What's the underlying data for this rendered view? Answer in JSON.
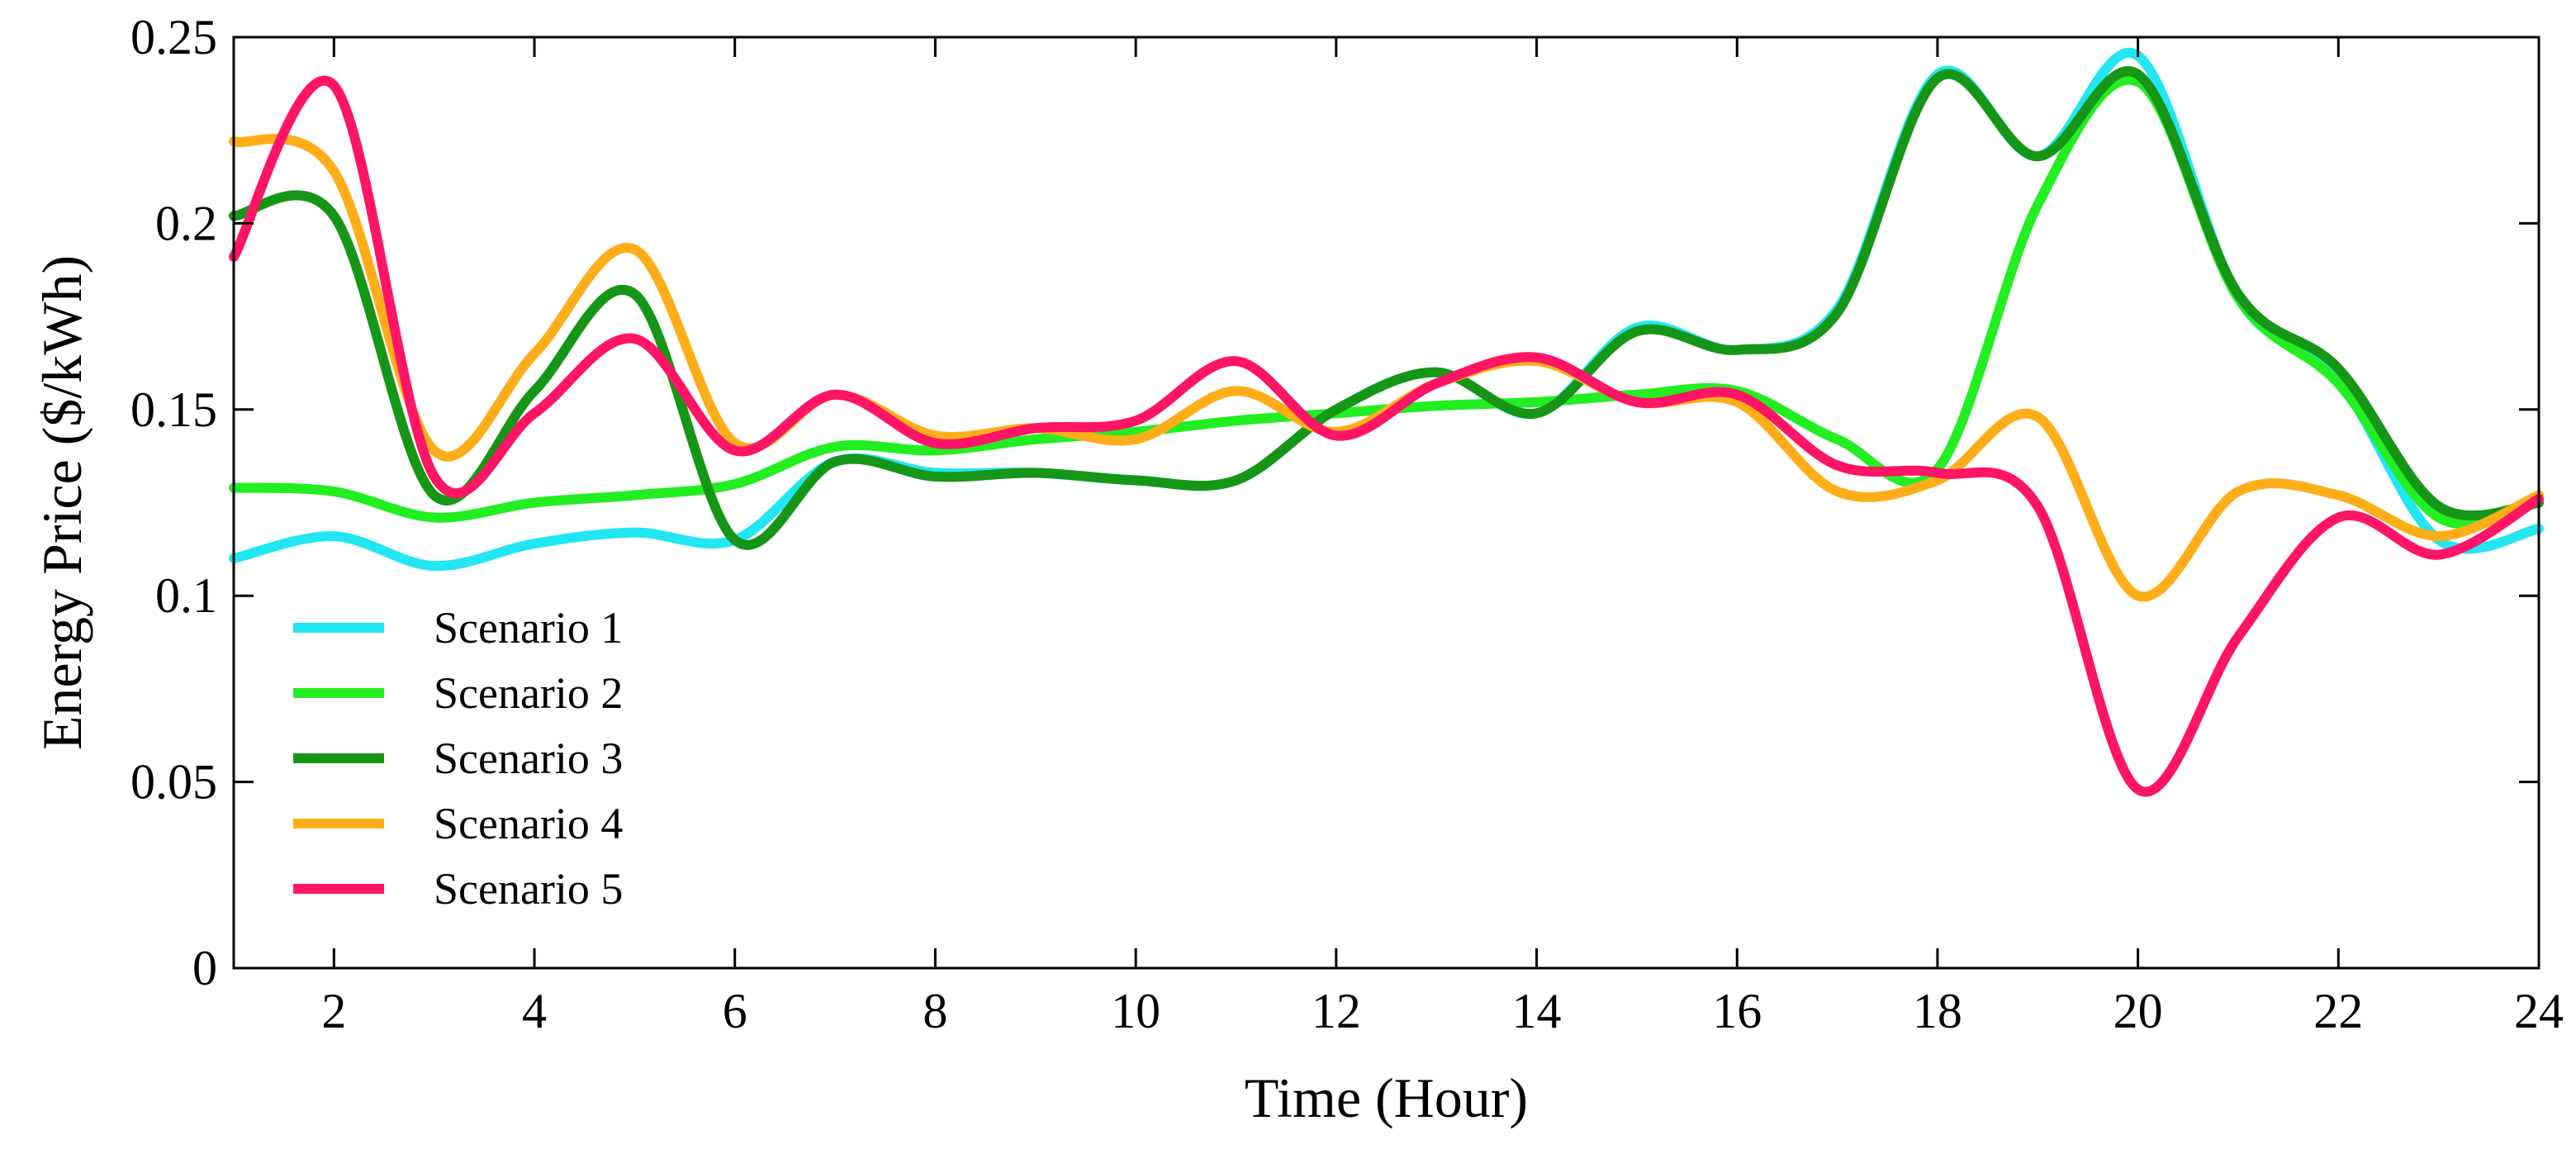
{
  "chart_data": {
    "type": "line",
    "title": "",
    "xlabel": "Time (Hour)",
    "ylabel": "Energy Price ($/kWh)",
    "xlim": [
      1,
      24
    ],
    "ylim": [
      0,
      0.25
    ],
    "xticks": [
      2,
      4,
      6,
      8,
      10,
      12,
      14,
      16,
      18,
      20,
      22,
      24
    ],
    "yticks": [
      0,
      0.05,
      0.1,
      0.15,
      0.2,
      0.25
    ],
    "xtick_labels": [
      "2",
      "4",
      "6",
      "8",
      "10",
      "12",
      "14",
      "16",
      "18",
      "20",
      "22",
      "24"
    ],
    "ytick_labels": [
      "0",
      "0.05",
      "0.1",
      "0.15",
      "0.2",
      "0.25"
    ],
    "grid": false,
    "legend_position": "bottom-left",
    "x": [
      1,
      2,
      3,
      4,
      5,
      6,
      7,
      8,
      9,
      10,
      11,
      12,
      13,
      14,
      15,
      16,
      17,
      18,
      19,
      20,
      21,
      22,
      23,
      24
    ],
    "series": [
      {
        "name": "Scenario 1",
        "color": "#22e6f2",
        "values": [
          0.11,
          0.116,
          0.108,
          0.114,
          0.117,
          0.115,
          0.136,
          0.133,
          0.133,
          0.131,
          0.131,
          0.15,
          0.16,
          0.149,
          0.172,
          0.166,
          0.177,
          0.24,
          0.218,
          0.245,
          0.18,
          0.158,
          0.115,
          0.118
        ]
      },
      {
        "name": "Scenario 2",
        "color": "#22ee22",
        "values": [
          0.129,
          0.128,
          0.121,
          0.125,
          0.127,
          0.13,
          0.14,
          0.139,
          0.142,
          0.144,
          0.147,
          0.149,
          0.151,
          0.152,
          0.154,
          0.155,
          0.142,
          0.134,
          0.205,
          0.238,
          0.18,
          0.157,
          0.121,
          0.125
        ]
      },
      {
        "name": "Scenario 3",
        "color": "#169616",
        "values": [
          0.202,
          0.202,
          0.127,
          0.155,
          0.181,
          0.115,
          0.136,
          0.132,
          0.133,
          0.131,
          0.131,
          0.15,
          0.16,
          0.149,
          0.171,
          0.166,
          0.176,
          0.239,
          0.218,
          0.24,
          0.181,
          0.161,
          0.124,
          0.125
        ]
      },
      {
        "name": "Scenario 4",
        "color": "#ffae1a",
        "values": [
          0.222,
          0.214,
          0.139,
          0.165,
          0.193,
          0.141,
          0.154,
          0.143,
          0.145,
          0.142,
          0.155,
          0.144,
          0.157,
          0.163,
          0.152,
          0.152,
          0.128,
          0.131,
          0.148,
          0.1,
          0.128,
          0.127,
          0.116,
          0.127
        ]
      },
      {
        "name": "Scenario 5",
        "color": "#ff1466",
        "values": [
          0.191,
          0.237,
          0.132,
          0.149,
          0.169,
          0.139,
          0.154,
          0.141,
          0.145,
          0.147,
          0.163,
          0.143,
          0.157,
          0.164,
          0.152,
          0.154,
          0.135,
          0.133,
          0.124,
          0.048,
          0.089,
          0.121,
          0.111,
          0.126
        ]
      }
    ]
  }
}
